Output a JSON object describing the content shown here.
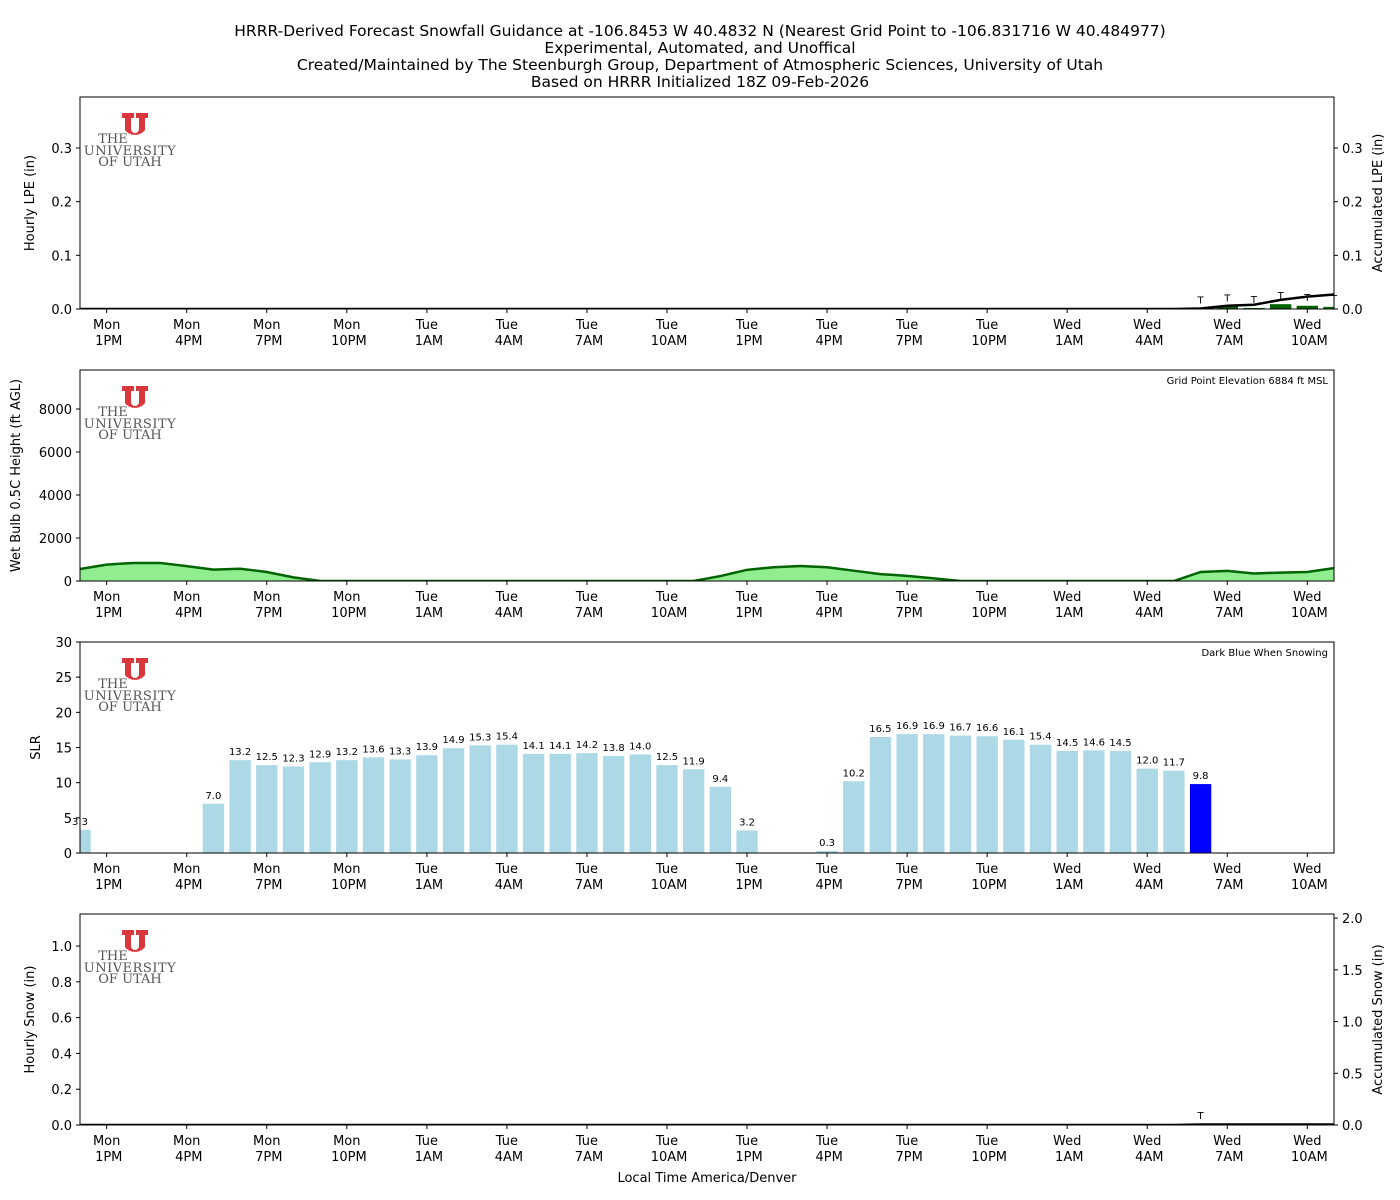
{
  "title_lines": [
    "HRRR-Derived Forecast Snowfall Guidance at -106.8453 W 40.4832 N (Nearest Grid Point to -106.831716 W 40.484977)",
    "Experimental, Automated, and Unoffical",
    "Created/Maintained by The Steenburgh Group, Department of Atmospheric Sciences, University of Utah",
    "Based on HRRR Initialized 18Z 09-Feb-2026"
  ],
  "logo_lines": [
    "THE",
    "UNIVERSITY",
    "OF UTAH"
  ],
  "chart_data": [
    {
      "type": "combo",
      "ylabel": "Hourly LPE (in)",
      "y2label": "Accumulated LPE (in)",
      "xlim": [
        0,
        47
      ],
      "ylim": [
        0,
        0.395
      ],
      "y2lim": [
        0,
        0.395
      ],
      "xticks": [
        {
          "value": 1,
          "label": "Mon 1PM"
        },
        {
          "value": 4,
          "label": "Mon 4PM"
        },
        {
          "value": 7,
          "label": "Mon 7PM"
        },
        {
          "value": 10,
          "label": "Mon 10PM"
        },
        {
          "value": 13,
          "label": "Tue 1AM"
        },
        {
          "value": 16,
          "label": "Tue 4AM"
        },
        {
          "value": 19,
          "label": "Tue 7AM"
        },
        {
          "value": 22,
          "label": "Tue 10AM"
        },
        {
          "value": 25,
          "label": "Tue 1PM"
        },
        {
          "value": 28,
          "label": "Tue 4PM"
        },
        {
          "value": 31,
          "label": "Tue 7PM"
        },
        {
          "value": 34,
          "label": "Tue 10PM"
        },
        {
          "value": 37,
          "label": "Wed 1AM"
        },
        {
          "value": 40,
          "label": "Wed 4AM"
        },
        {
          "value": 43,
          "label": "Wed 7AM"
        },
        {
          "value": 46,
          "label": "Wed 10AM"
        }
      ],
      "yticks": [
        {
          "value": 0,
          "label": "0.0"
        },
        {
          "value": 0.1,
          "label": "0.1"
        },
        {
          "value": 0.2,
          "label": "0.2"
        },
        {
          "value": 0.3,
          "label": "0.3"
        }
      ],
      "y2ticks": [
        {
          "value": 0,
          "label": "0.0"
        },
        {
          "value": 0.1,
          "label": "0.1"
        },
        {
          "value": 0.2,
          "label": "0.2"
        },
        {
          "value": 0.3,
          "label": "0.3"
        }
      ],
      "series": [
        {
          "kind": "bar",
          "color": "#006400",
          "x": [
            42,
            43,
            44,
            45,
            46,
            47
          ],
          "values": [
            0.001,
            0.005,
            0.002,
            0.009,
            0.006,
            0.004
          ],
          "value_labels": [
            "T",
            "T",
            "T",
            "T",
            "T",
            "T"
          ]
        },
        {
          "kind": "line",
          "axis": "y2",
          "color": "#000000",
          "x": [
            0,
            1,
            2,
            3,
            4,
            5,
            6,
            7,
            8,
            9,
            10,
            11,
            12,
            13,
            14,
            15,
            16,
            17,
            18,
            19,
            20,
            21,
            22,
            23,
            24,
            25,
            26,
            27,
            28,
            29,
            30,
            31,
            32,
            33,
            34,
            35,
            36,
            37,
            38,
            39,
            40,
            41,
            42,
            43,
            44,
            45,
            46,
            47
          ],
          "values": [
            0,
            0,
            0,
            0,
            0,
            0,
            0,
            0,
            0,
            0,
            0,
            0,
            0,
            0,
            0,
            0,
            0,
            0,
            0,
            0,
            0,
            0,
            0,
            0,
            0,
            0,
            0,
            0,
            0,
            0,
            0,
            0,
            0,
            0,
            0,
            0,
            0,
            0,
            0,
            0,
            0,
            0,
            0.001,
            0.006,
            0.008,
            0.017,
            0.023,
            0.027
          ]
        }
      ]
    },
    {
      "type": "area",
      "ylabel": "Wet Bulb 0.5C Height (ft AGL)",
      "annotation": "Grid Point Elevation 6884 ft MSL",
      "xlim": [
        0,
        47
      ],
      "ylim": [
        0,
        9814
      ],
      "xticks": [
        {
          "value": 1,
          "label": "Mon 1PM"
        },
        {
          "value": 4,
          "label": "Mon 4PM"
        },
        {
          "value": 7,
          "label": "Mon 7PM"
        },
        {
          "value": 10,
          "label": "Mon 10PM"
        },
        {
          "value": 13,
          "label": "Tue 1AM"
        },
        {
          "value": 16,
          "label": "Tue 4AM"
        },
        {
          "value": 19,
          "label": "Tue 7AM"
        },
        {
          "value": 22,
          "label": "Tue 10AM"
        },
        {
          "value": 25,
          "label": "Tue 1PM"
        },
        {
          "value": 28,
          "label": "Tue 4PM"
        },
        {
          "value": 31,
          "label": "Tue 7PM"
        },
        {
          "value": 34,
          "label": "Tue 10PM"
        },
        {
          "value": 37,
          "label": "Wed 1AM"
        },
        {
          "value": 40,
          "label": "Wed 4AM"
        },
        {
          "value": 43,
          "label": "Wed 7AM"
        },
        {
          "value": 46,
          "label": "Wed 10AM"
        }
      ],
      "yticks": [
        0,
        2000,
        4000,
        6000,
        8000
      ],
      "series": [
        {
          "color": "#006400",
          "fill": "#90ee90",
          "x": [
            0,
            1,
            2,
            3,
            4,
            5,
            6,
            7,
            8,
            9,
            10,
            11,
            12,
            13,
            14,
            15,
            16,
            17,
            18,
            19,
            20,
            21,
            22,
            23,
            24,
            25,
            26,
            27,
            28,
            29,
            30,
            31,
            32,
            33,
            34,
            35,
            36,
            37,
            38,
            39,
            40,
            41,
            42,
            43,
            44,
            45,
            46,
            47
          ],
          "values": [
            560,
            760,
            840,
            840,
            690,
            530,
            570,
            420,
            170,
            0,
            0,
            0,
            0,
            0,
            0,
            0,
            0,
            0,
            0,
            0,
            0,
            0,
            0,
            0,
            230,
            520,
            640,
            700,
            640,
            480,
            320,
            240,
            120,
            0,
            0,
            0,
            0,
            0,
            0,
            0,
            0,
            0,
            420,
            470,
            350,
            390,
            420,
            600
          ]
        }
      ]
    },
    {
      "type": "bar",
      "ylabel": "SLR",
      "annotation": "Dark Blue When Snowing",
      "xlim": [
        0,
        47
      ],
      "ylim": [
        0,
        30
      ],
      "xticks": [
        {
          "value": 1,
          "label": "Mon 1PM"
        },
        {
          "value": 4,
          "label": "Mon 4PM"
        },
        {
          "value": 7,
          "label": "Mon 7PM"
        },
        {
          "value": 10,
          "label": "Mon 10PM"
        },
        {
          "value": 13,
          "label": "Tue 1AM"
        },
        {
          "value": 16,
          "label": "Tue 4AM"
        },
        {
          "value": 19,
          "label": "Tue 7AM"
        },
        {
          "value": 22,
          "label": "Tue 10AM"
        },
        {
          "value": 25,
          "label": "Tue 1PM"
        },
        {
          "value": 28,
          "label": "Tue 4PM"
        },
        {
          "value": 31,
          "label": "Tue 7PM"
        },
        {
          "value": 34,
          "label": "Tue 10PM"
        },
        {
          "value": 37,
          "label": "Wed 1AM"
        },
        {
          "value": 40,
          "label": "Wed 4AM"
        },
        {
          "value": 43,
          "label": "Wed 7AM"
        },
        {
          "value": 46,
          "label": "Wed 10AM"
        }
      ],
      "yticks": [
        0,
        5,
        10,
        15,
        20,
        25,
        30
      ],
      "series": [
        {
          "kind": "bar",
          "x": [
            0,
            5,
            6,
            7,
            8,
            9,
            10,
            11,
            12,
            13,
            14,
            15,
            16,
            17,
            18,
            19,
            20,
            21,
            22,
            23,
            24,
            25,
            28,
            29,
            30,
            31,
            32,
            33,
            34,
            35,
            36,
            37,
            38,
            39,
            40,
            41,
            42
          ],
          "values": [
            3.3,
            7.0,
            13.2,
            12.5,
            12.3,
            12.9,
            13.2,
            13.6,
            13.3,
            13.9,
            14.9,
            15.3,
            15.4,
            14.1,
            14.1,
            14.2,
            13.8,
            14.0,
            12.5,
            11.9,
            9.4,
            3.2,
            0.3,
            10.2,
            16.5,
            16.9,
            16.9,
            16.7,
            16.6,
            16.1,
            15.4,
            14.5,
            14.6,
            14.5,
            12.0,
            11.7,
            9.8
          ],
          "value_labels": [
            "3.3",
            "7.0",
            "13.2",
            "12.5",
            "12.3",
            "12.9",
            "13.2",
            "13.6",
            "13.3",
            "13.9",
            "14.9",
            "15.3",
            "15.4",
            "14.1",
            "14.1",
            "14.2",
            "13.8",
            "14.0",
            "12.5",
            "11.9",
            "9.4",
            "3.2",
            "0.3",
            "10.2",
            "16.5",
            "16.9",
            "16.9",
            "16.7",
            "16.6",
            "16.1",
            "15.4",
            "14.5",
            "14.6",
            "14.5",
            "12.0",
            "11.7",
            "9.8"
          ],
          "colors": [
            "#add8e6",
            "#add8e6",
            "#add8e6",
            "#add8e6",
            "#add8e6",
            "#add8e6",
            "#add8e6",
            "#add8e6",
            "#add8e6",
            "#add8e6",
            "#add8e6",
            "#add8e6",
            "#add8e6",
            "#add8e6",
            "#add8e6",
            "#add8e6",
            "#add8e6",
            "#add8e6",
            "#add8e6",
            "#add8e6",
            "#add8e6",
            "#add8e6",
            "#add8e6",
            "#add8e6",
            "#add8e6",
            "#add8e6",
            "#add8e6",
            "#add8e6",
            "#add8e6",
            "#add8e6",
            "#add8e6",
            "#add8e6",
            "#add8e6",
            "#add8e6",
            "#add8e6",
            "#add8e6",
            "#0000ff"
          ]
        }
      ]
    },
    {
      "type": "combo",
      "ylabel": "Hourly Snow (in)",
      "y2label": "Accumulated Snow (in)",
      "xlabel": "Local Time America/Denver",
      "xlim": [
        0,
        47
      ],
      "ylim": [
        0,
        1.179
      ],
      "y2lim": [
        0,
        2.04
      ],
      "xticks": [
        {
          "value": 1,
          "label": "Mon 1PM"
        },
        {
          "value": 4,
          "label": "Mon 4PM"
        },
        {
          "value": 7,
          "label": "Mon 7PM"
        },
        {
          "value": 10,
          "label": "Mon 10PM"
        },
        {
          "value": 13,
          "label": "Tue 1AM"
        },
        {
          "value": 16,
          "label": "Tue 4AM"
        },
        {
          "value": 19,
          "label": "Tue 7AM"
        },
        {
          "value": 22,
          "label": "Tue 10AM"
        },
        {
          "value": 25,
          "label": "Tue 1PM"
        },
        {
          "value": 28,
          "label": "Tue 4PM"
        },
        {
          "value": 31,
          "label": "Tue 7PM"
        },
        {
          "value": 34,
          "label": "Tue 10PM"
        },
        {
          "value": 37,
          "label": "Wed 1AM"
        },
        {
          "value": 40,
          "label": "Wed 4AM"
        },
        {
          "value": 43,
          "label": "Wed 7AM"
        },
        {
          "value": 46,
          "label": "Wed 10AM"
        }
      ],
      "yticks": [
        {
          "value": 0,
          "label": "0.0"
        },
        {
          "value": 0.2,
          "label": "0.2"
        },
        {
          "value": 0.4,
          "label": "0.4"
        },
        {
          "value": 0.6,
          "label": "0.6"
        },
        {
          "value": 0.8,
          "label": "0.8"
        },
        {
          "value": 1.0,
          "label": "1.0"
        }
      ],
      "y2ticks": [
        {
          "value": 0,
          "label": "0.0"
        },
        {
          "value": 0.5,
          "label": "0.5"
        },
        {
          "value": 1.0,
          "label": "1.0"
        },
        {
          "value": 1.5,
          "label": "1.5"
        },
        {
          "value": 2.0,
          "label": "2.0"
        }
      ],
      "series": [
        {
          "kind": "bar",
          "color": "#006400",
          "x": [
            42
          ],
          "values": [
            0.005
          ],
          "value_labels": [
            "T"
          ]
        },
        {
          "kind": "line",
          "axis": "y2",
          "color": "#000000",
          "x": [
            0,
            1,
            2,
            3,
            4,
            5,
            6,
            7,
            8,
            9,
            10,
            11,
            12,
            13,
            14,
            15,
            16,
            17,
            18,
            19,
            20,
            21,
            22,
            23,
            24,
            25,
            26,
            27,
            28,
            29,
            30,
            31,
            32,
            33,
            34,
            35,
            36,
            37,
            38,
            39,
            40,
            41,
            42,
            43,
            44,
            45,
            46,
            47
          ],
          "values": [
            0,
            0,
            0,
            0,
            0,
            0,
            0,
            0,
            0,
            0,
            0,
            0,
            0,
            0,
            0,
            0,
            0,
            0,
            0,
            0,
            0,
            0,
            0,
            0,
            0,
            0,
            0,
            0,
            0,
            0,
            0,
            0,
            0,
            0,
            0,
            0,
            0,
            0,
            0,
            0,
            0,
            0,
            0.005,
            0.005,
            0.005,
            0.005,
            0.005,
            0.005
          ]
        }
      ]
    }
  ]
}
